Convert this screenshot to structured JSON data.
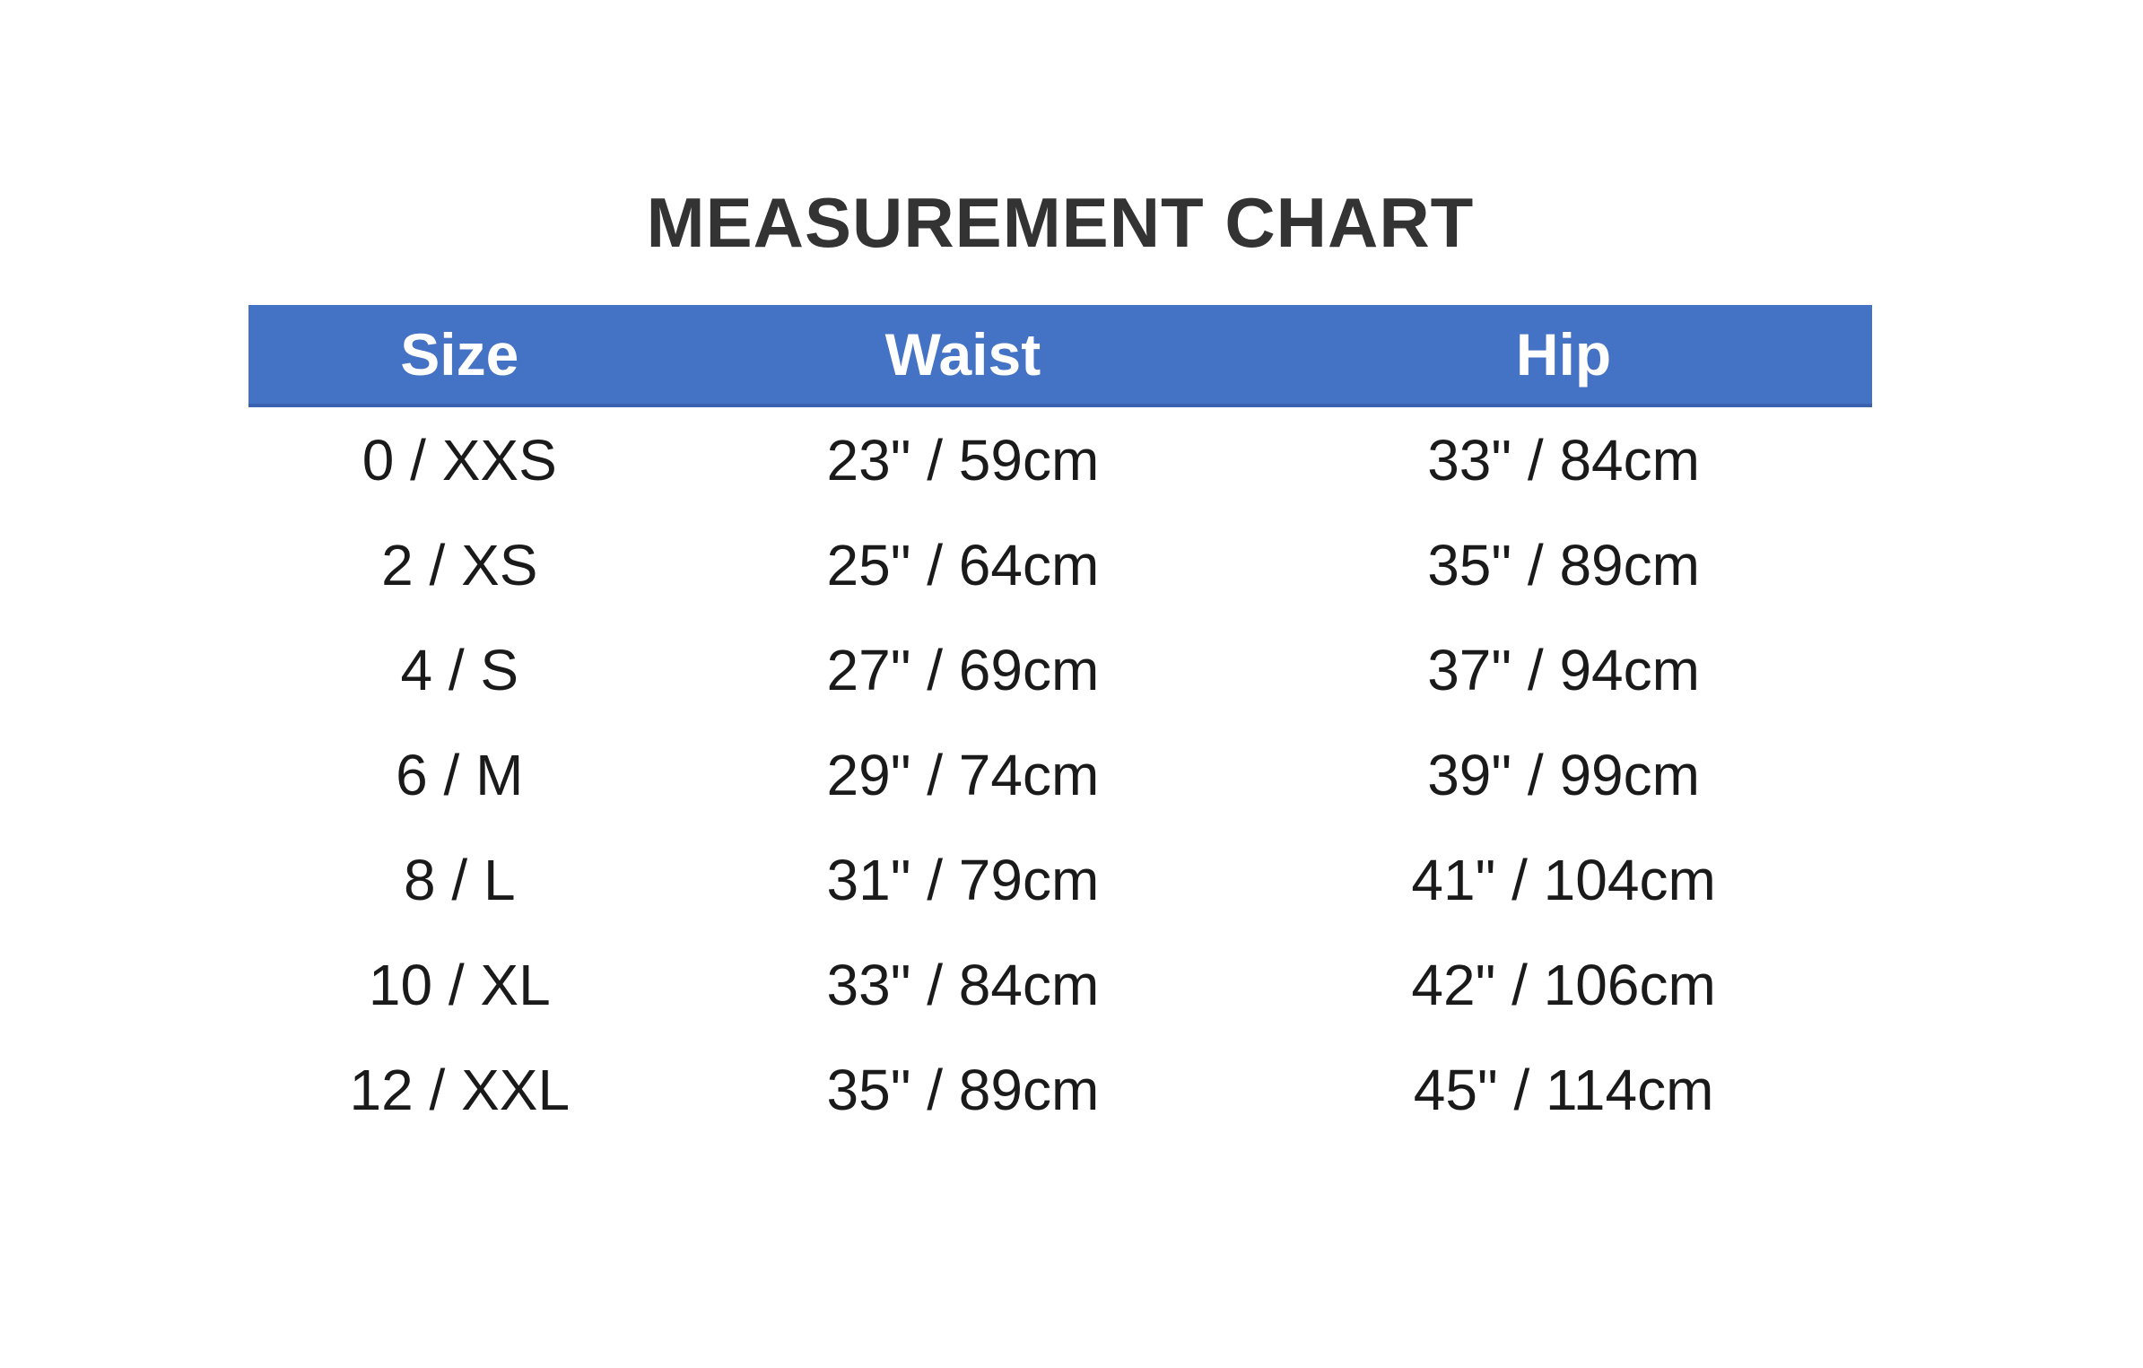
{
  "chart_data": {
    "type": "table",
    "title": "MEASUREMENT CHART",
    "columns": [
      "Size",
      "Waist",
      "Hip"
    ],
    "rows": [
      [
        "0 / XXS",
        "23\" / 59cm",
        "33\" / 84cm"
      ],
      [
        "2 / XS",
        "25\" / 64cm",
        "35\" / 89cm"
      ],
      [
        "4 / S",
        "27\" / 69cm",
        "37\" / 94cm"
      ],
      [
        "6 / M",
        "29\" / 74cm",
        "39\" / 99cm"
      ],
      [
        "8 / L",
        "31\" / 79cm",
        "41\" / 104cm"
      ],
      [
        "10 / XL",
        "33\" / 84cm",
        "42\" / 106cm"
      ],
      [
        "12 / XXL",
        "35\" / 89cm",
        "45\" / 114cm"
      ]
    ],
    "layout": {
      "header_position": "top",
      "grid": "off",
      "units": "inches / centimeters"
    }
  },
  "colors": {
    "header_bg": "#4472C4",
    "header_border": "#3A62AE",
    "header_text": "#FFFFFF",
    "title_text": "#333333",
    "body_text": "#1A1A1A",
    "page_bg": "#FFFFFF"
  }
}
